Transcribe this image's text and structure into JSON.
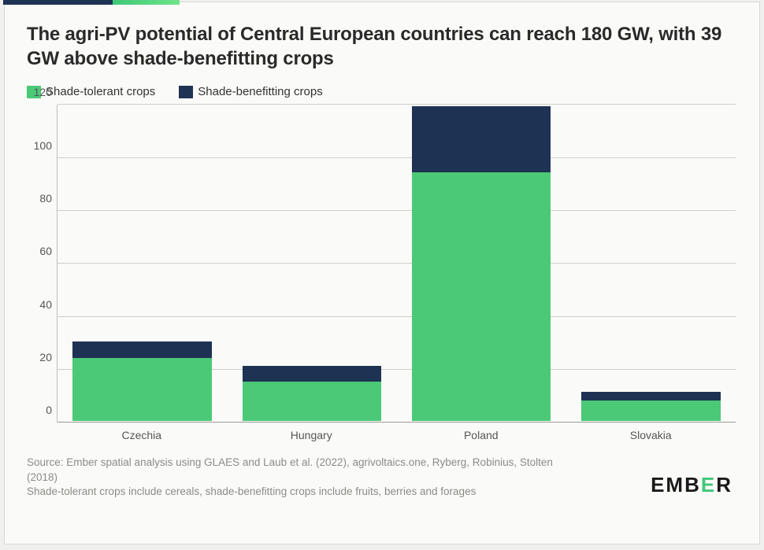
{
  "title": "The agri-PV potential of Central European countries can reach 180 GW, with 39 GW above shade-benefitting crops",
  "legend": {
    "series1": {
      "label": "Shade-tolerant crops",
      "color": "#4bc977"
    },
    "series2": {
      "label": "Shade-benefitting crops",
      "color": "#1e3254"
    }
  },
  "chart": {
    "type": "stacked-bar",
    "background_color": "#fafaf8",
    "grid_color": "#cfcfca",
    "axis_color": "#bfbfba",
    "baseline_color": "#9a9a94",
    "ylim": [
      0,
      120
    ],
    "ytick_step": 20,
    "yticks": [
      0,
      20,
      40,
      60,
      80,
      100,
      120
    ],
    "categories": [
      "Czechia",
      "Hungary",
      "Poland",
      "Slovakia"
    ],
    "series": [
      {
        "name": "Shade-tolerant crops",
        "color": "#4bc977",
        "values": [
          24,
          15,
          94,
          8
        ]
      },
      {
        "name": "Shade-benefitting crops",
        "color": "#1e3254",
        "values": [
          6,
          6,
          25,
          3
        ]
      }
    ],
    "bar_width_pct": 82,
    "label_color": "#555",
    "label_fontsize": 14,
    "title_fontsize": 24,
    "title_color": "#2a2a2a"
  },
  "footer": {
    "source_line1": "Source: Ember spatial analysis using GLAES and Laub et al. (2022), agrivoltaics.one, Ryberg, Robinius, Stolten (2018)",
    "source_line2": "Shade-tolerant crops include cereals, shade-benefitting crops include fruits, berries and forages",
    "brand_pre": "EMB",
    "brand_accent": "E",
    "brand_post": "R",
    "brand_accent_color": "#3fc878"
  },
  "accent_bar": {
    "left_color": "#1e3254",
    "right_gradient_from": "#3fc878",
    "right_gradient_to": "#6fe38a"
  }
}
